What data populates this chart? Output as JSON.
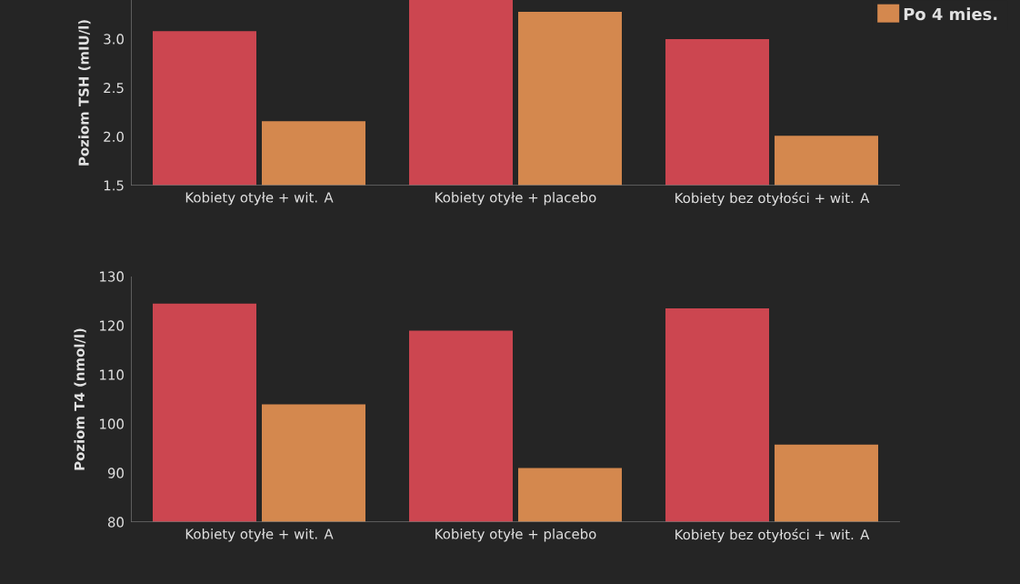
{
  "chart_data": [
    {
      "type": "bar",
      "categories": [
        "Kobiety otyłe + wit. A",
        "Kobiety otyłe + placebo",
        "Kobiety bez otyłości + wit. A"
      ],
      "series": [
        {
          "color": "#cc4650",
          "values": [
            3.08,
            3.4,
            3.0
          ]
        },
        {
          "name": "Po 4 mies.",
          "color": "#d4884e",
          "values": [
            2.16,
            3.28,
            2.01
          ]
        }
      ],
      "ylabel": "Poziom TSH (mIU/l)",
      "ylim": [
        1.5,
        3.4
      ],
      "yticks": [
        1.5,
        {
          "value": 2,
          "label": "2.0"
        },
        2.5,
        {
          "value": 3,
          "label": "3.0"
        }
      ],
      "legend": "top right"
    },
    {
      "type": "bar",
      "categories": [
        "Kobiety otyłe + wit. A",
        "Kobiety otyłe + placebo",
        "Kobiety bez otyłości + wit. A"
      ],
      "series": [
        {
          "color": "#cc4650",
          "values": [
            124.5,
            119,
            123.5
          ]
        },
        {
          "color": "#d4884e",
          "values": [
            104,
            91,
            95.8
          ]
        }
      ],
      "ylabel": "Poziom T4 (nmol/l)",
      "ylim": [
        80,
        130
      ],
      "yticks": [
        80,
        90,
        100,
        110,
        120,
        130
      ]
    }
  ]
}
